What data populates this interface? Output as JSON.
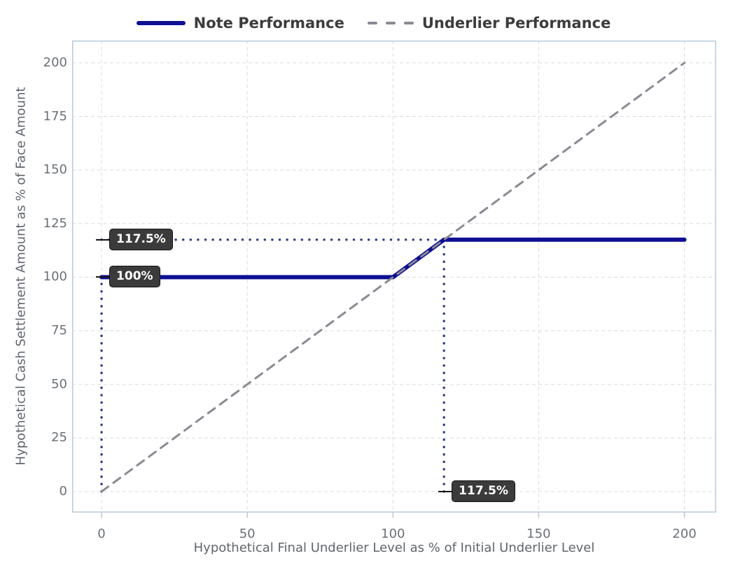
{
  "legend": {
    "items": [
      {
        "label": "Note Performance"
      },
      {
        "label": "Underlier Performance"
      }
    ]
  },
  "chart_data": {
    "type": "line",
    "title": "",
    "xlabel": "Hypothetical Final Underlier Level as % of Initial Underlier Level",
    "ylabel": "Hypothetical Cash Settlement Amount as % of Face Amount",
    "xticks": [
      0,
      50,
      100,
      150,
      200
    ],
    "yticks": [
      0,
      25,
      50,
      75,
      100,
      125,
      150,
      175,
      200
    ],
    "xrange": [
      -10.1,
      210.9
    ],
    "yrange": [
      -9.8,
      210.4
    ],
    "grid": true,
    "legend_position": "top-center",
    "series": [
      {
        "name": "Note Performance",
        "style": "solid",
        "color": "#0f0f94",
        "width": 6,
        "points": [
          [
            0,
            100
          ],
          [
            100,
            100
          ],
          [
            117.5,
            117.5
          ],
          [
            200,
            117.5
          ]
        ]
      },
      {
        "name": "Underlier Performance",
        "style": "dashed",
        "color": "#8a8a94",
        "width": 3,
        "points": [
          [
            0,
            0
          ],
          [
            200,
            200
          ]
        ]
      }
    ],
    "guides": {
      "style": "dotted",
      "color": "#2e3a85",
      "segments": [
        [
          0,
          117.5,
          117.5,
          117.5
        ],
        [
          117.5,
          0,
          117.5,
          117.5
        ],
        [
          0,
          0,
          0,
          100
        ]
      ]
    },
    "annotations": [
      {
        "x": 0,
        "y": 117.5,
        "label": "117.5%"
      },
      {
        "x": 0,
        "y": 100,
        "label": "100%"
      },
      {
        "x": 117.5,
        "y": 0,
        "label": "117.5%"
      }
    ]
  },
  "colors": {
    "note_line": "#0f0f94",
    "underlier_line": "#8a8a94",
    "guide_dots": "#2e3a85",
    "gridline": "#dbdbdb",
    "axis_border": "#b9cada",
    "tick_label": "#6b7077",
    "axis_title": "#60656c",
    "legend_text": "#3c3c3c",
    "tooltip_bg": "#3b3b3b",
    "tooltip_border": "#141414",
    "tooltip_text": "#ffffff"
  }
}
